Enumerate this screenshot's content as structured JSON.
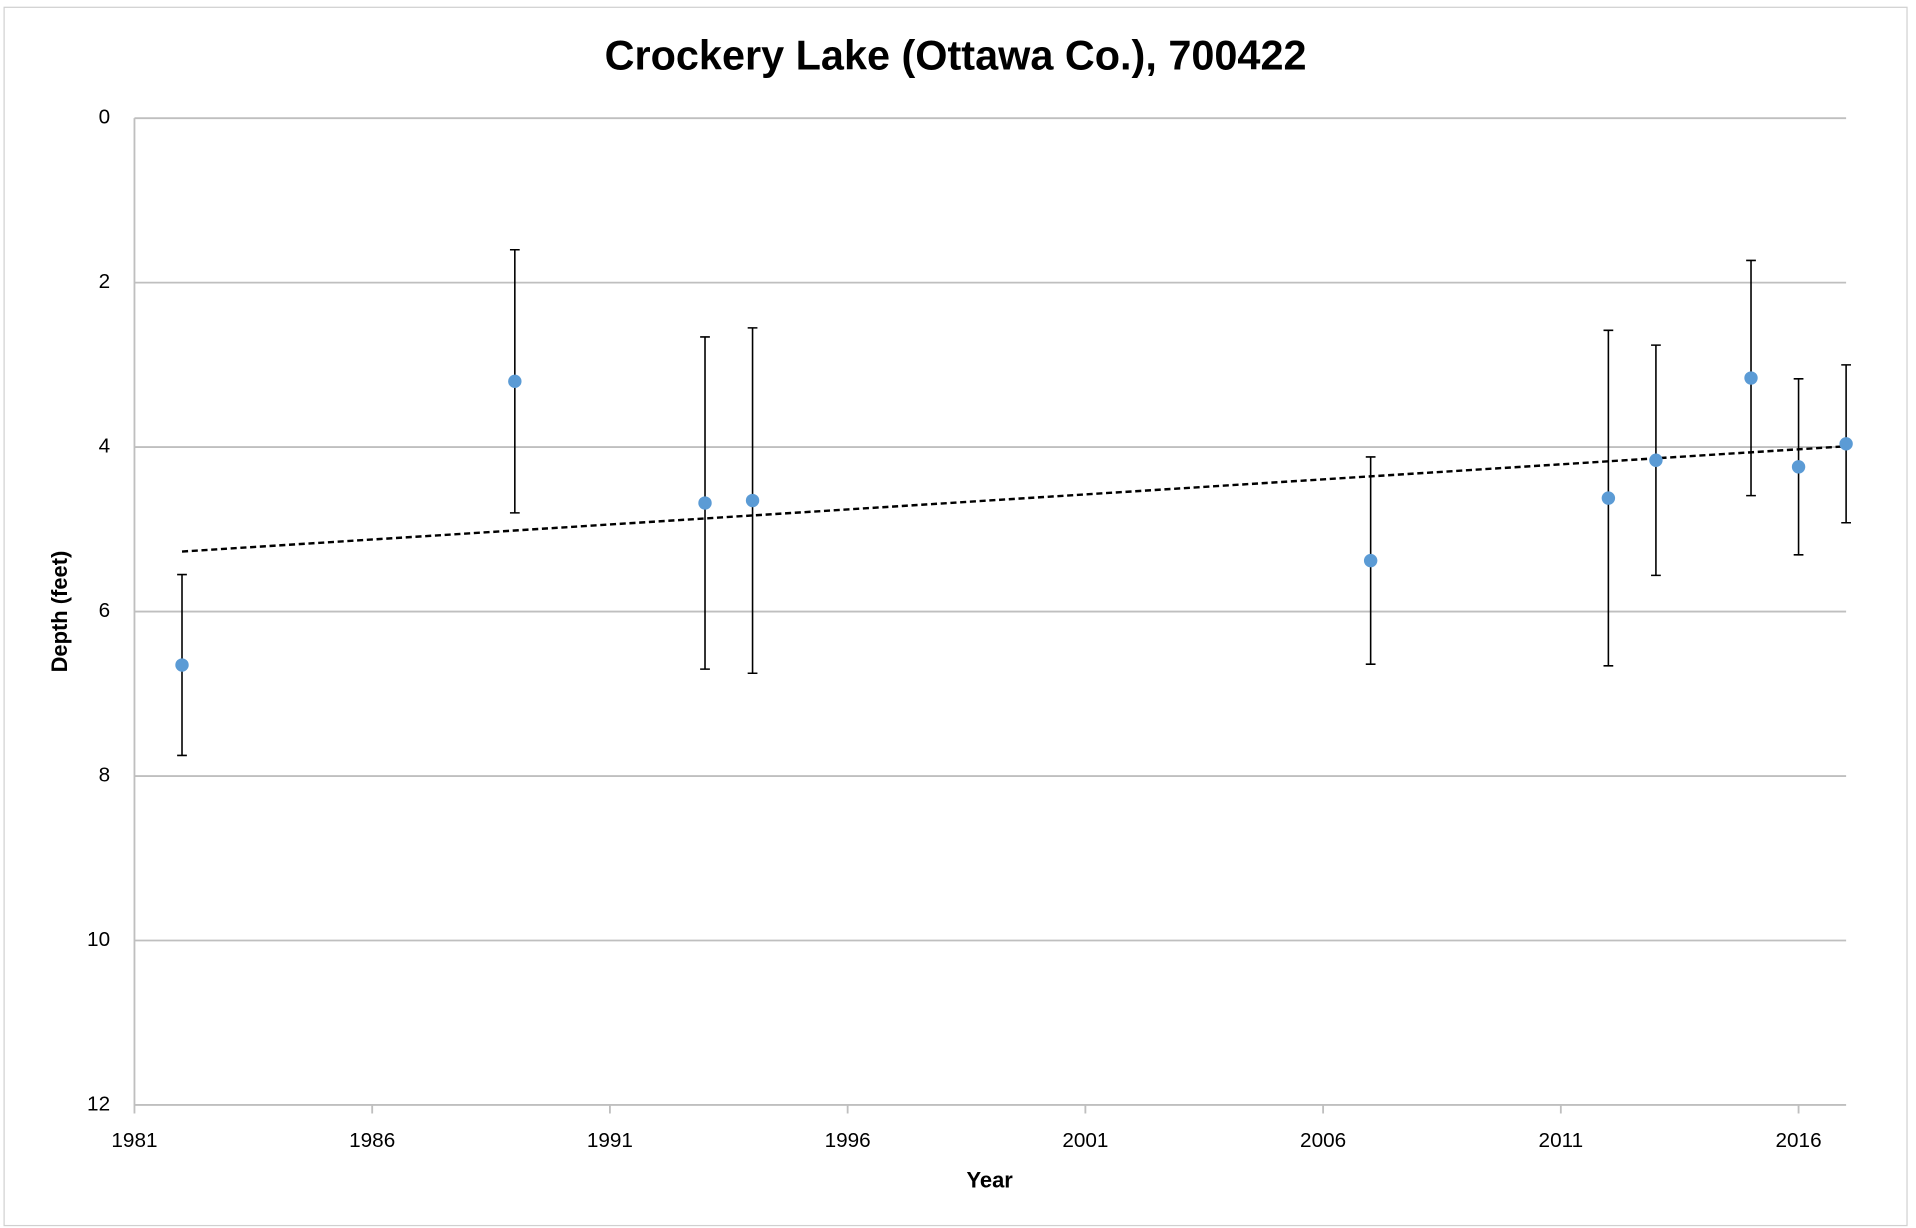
{
  "chart_data": {
    "type": "scatter",
    "title": "Crockery Lake (Ottawa Co.), 700422",
    "x_label": "Year",
    "y_label": "Depth (feet)",
    "x": [
      1982,
      1989,
      1993,
      1994,
      2007,
      2012,
      2013,
      2015,
      2016,
      2017
    ],
    "values": [
      6.65,
      3.2,
      4.68,
      4.65,
      5.38,
      4.62,
      4.16,
      3.16,
      4.24,
      3.96
    ],
    "errors": [
      1.1,
      1.6,
      2.02,
      2.1,
      1.26,
      2.04,
      1.4,
      1.43,
      1.07,
      0.96
    ],
    "color": "#5b9bd5",
    "trendline": {
      "x": [
        1982,
        2017
      ],
      "values": [
        5.27,
        3.99
      ],
      "color": "#000000"
    },
    "xlim": [
      1981,
      2017
    ],
    "xticks": [
      1981,
      1986,
      1991,
      1996,
      2001,
      2006,
      2011,
      2016
    ],
    "ylim": [
      0,
      12
    ],
    "yticks": [
      0,
      2,
      4,
      6,
      8,
      10,
      12
    ],
    "y_inverted": true,
    "grid": true
  }
}
